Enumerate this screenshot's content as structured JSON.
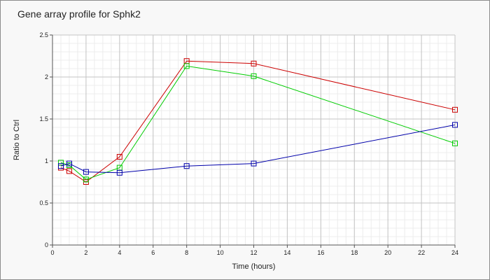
{
  "chart_data": {
    "type": "line",
    "title": "Gene array profile for Sphk2",
    "xlabel": "Time (hours)",
    "ylabel": "Ratio to Ctrl",
    "xlim": [
      0,
      24
    ],
    "ylim": [
      0,
      2.5
    ],
    "x_ticks": [
      "0",
      "2",
      "4",
      "6",
      "8",
      "10",
      "12",
      "14",
      "16",
      "18",
      "20",
      "22",
      "24"
    ],
    "y_ticks": [
      "0",
      "0.5",
      "1",
      "1.5",
      "2",
      "2.5"
    ],
    "grid": true,
    "legend": "none",
    "x": [
      0.5,
      1,
      2,
      4,
      8,
      12,
      24
    ],
    "series": [
      {
        "color": "#cc0000",
        "marker": "square",
        "values": [
          0.92,
          0.88,
          0.75,
          1.05,
          2.19,
          2.16,
          1.61
        ]
      },
      {
        "color": "#00cc00",
        "marker": "square",
        "values": [
          0.98,
          0.95,
          0.78,
          0.92,
          2.13,
          2.01,
          1.21
        ]
      },
      {
        "color": "#0000aa",
        "marker": "square",
        "values": [
          0.94,
          0.97,
          0.87,
          0.86,
          0.94,
          0.97,
          1.43
        ]
      }
    ]
  }
}
